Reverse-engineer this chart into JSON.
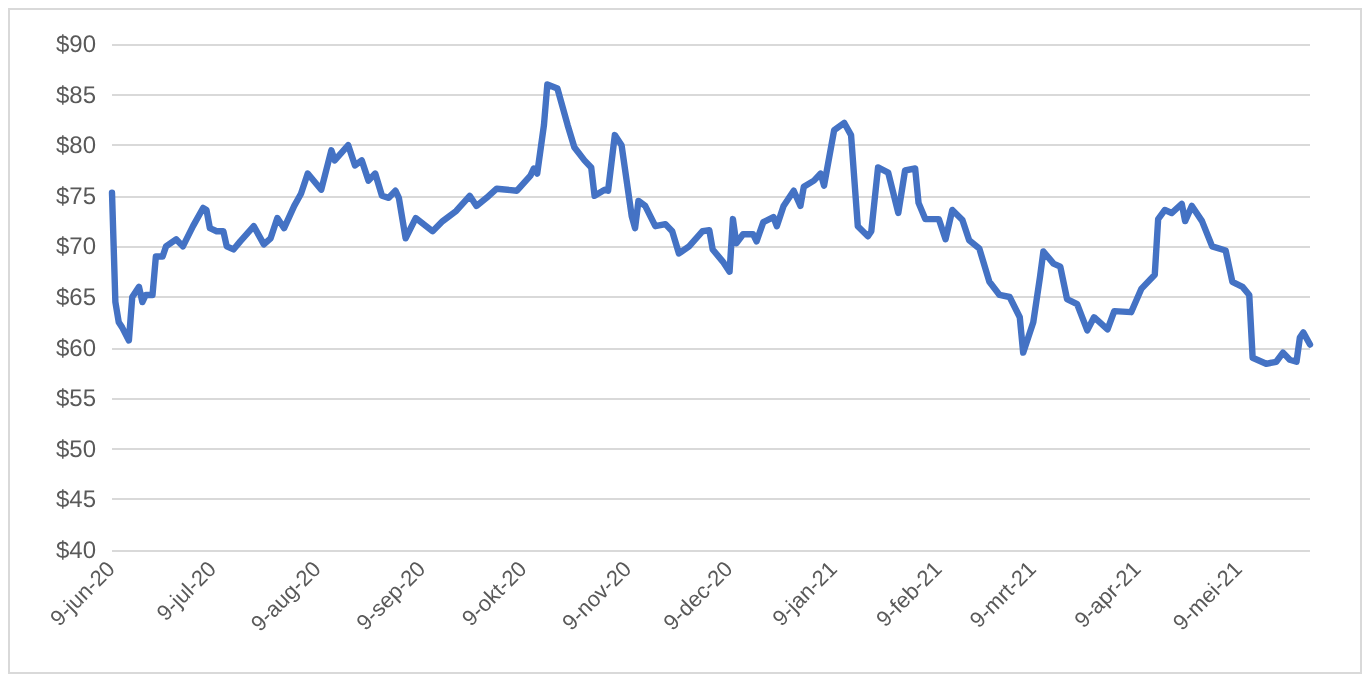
{
  "chart_data": {
    "type": "line",
    "x": [
      "2020-06-09",
      "2020-06-10",
      "2020-06-11",
      "2020-06-12",
      "2020-06-14",
      "2020-06-15",
      "2020-06-17",
      "2020-06-18",
      "2020-06-19",
      "2020-06-21",
      "2020-06-22",
      "2020-06-24",
      "2020-06-25",
      "2020-06-28",
      "2020-06-30",
      "2020-07-03",
      "2020-07-06",
      "2020-07-07",
      "2020-07-08",
      "2020-07-10",
      "2020-07-12",
      "2020-07-13",
      "2020-07-15",
      "2020-07-17",
      "2020-07-21",
      "2020-07-24",
      "2020-07-26",
      "2020-07-28",
      "2020-07-30",
      "2020-08-02",
      "2020-08-04",
      "2020-08-06",
      "2020-08-10",
      "2020-08-13",
      "2020-08-14",
      "2020-08-18",
      "2020-08-20",
      "2020-08-22",
      "2020-08-24",
      "2020-08-26",
      "2020-08-28",
      "2020-08-30",
      "2020-09-01",
      "2020-09-02",
      "2020-09-04",
      "2020-09-07",
      "2020-09-12",
      "2020-09-15",
      "2020-09-19",
      "2020-09-23",
      "2020-09-25",
      "2020-09-28",
      "2020-10-01",
      "2020-10-07",
      "2020-10-11",
      "2020-10-12",
      "2020-10-13",
      "2020-10-15",
      "2020-10-16",
      "2020-10-19",
      "2020-10-22",
      "2020-10-24",
      "2020-10-27",
      "2020-10-29",
      "2020-10-30",
      "2020-11-02",
      "2020-11-03",
      "2020-11-05",
      "2020-11-07",
      "2020-11-10",
      "2020-11-11",
      "2020-11-12",
      "2020-11-14",
      "2020-11-17",
      "2020-11-20",
      "2020-11-22",
      "2020-11-24",
      "2020-11-27",
      "2020-12-01",
      "2020-12-03",
      "2020-12-04",
      "2020-12-07",
      "2020-12-09",
      "2020-12-10",
      "2020-12-11",
      "2020-12-13",
      "2020-12-16",
      "2020-12-17",
      "2020-12-19",
      "2020-12-22",
      "2020-12-23",
      "2020-12-25",
      "2020-12-28",
      "2020-12-30",
      "2020-12-31",
      "2021-01-03",
      "2021-01-05",
      "2021-01-06",
      "2021-01-09",
      "2021-01-12",
      "2021-01-14",
      "2021-01-16",
      "2021-01-19",
      "2021-01-20",
      "2021-01-22",
      "2021-01-25",
      "2021-01-28",
      "2021-01-30",
      "2021-02-02",
      "2021-02-03",
      "2021-02-05",
      "2021-02-09",
      "2021-02-11",
      "2021-02-13",
      "2021-02-16",
      "2021-02-18",
      "2021-02-21",
      "2021-02-24",
      "2021-02-27",
      "2021-03-02",
      "2021-03-05",
      "2021-03-06",
      "2021-03-09",
      "2021-03-11",
      "2021-03-12",
      "2021-03-15",
      "2021-03-17",
      "2021-03-19",
      "2021-03-22",
      "2021-03-25",
      "2021-03-27",
      "2021-03-31",
      "2021-04-02",
      "2021-04-07",
      "2021-04-10",
      "2021-04-14",
      "2021-04-15",
      "2021-04-17",
      "2021-04-19",
      "2021-04-22",
      "2021-04-23",
      "2021-04-25",
      "2021-04-28",
      "2021-05-01",
      "2021-05-05",
      "2021-05-07",
      "2021-05-10",
      "2021-05-12",
      "2021-05-13",
      "2021-05-17",
      "2021-05-20",
      "2021-05-22",
      "2021-05-24",
      "2021-05-26",
      "2021-05-27",
      "2021-05-28",
      "2021-05-30"
    ],
    "series": [
      {
        "color": "#4472c4",
        "values": [
          75.3,
          64.5,
          62.5,
          62,
          60.7,
          65,
          66,
          64.5,
          65.2,
          65.2,
          69,
          69,
          70,
          70.7,
          70,
          72,
          73.8,
          73.6,
          71.8,
          71.5,
          71.5,
          70,
          69.7,
          70.5,
          72,
          70.2,
          70.8,
          72.8,
          71.8,
          74,
          75.2,
          77.2,
          75.6,
          79.5,
          78.5,
          80,
          78,
          78.5,
          76.5,
          77.2,
          75,
          74.8,
          75.5,
          74.8,
          70.8,
          72.8,
          71.5,
          72.5,
          73.5,
          75,
          74,
          74.8,
          75.7,
          75.5,
          77,
          77.7,
          77.2,
          82,
          86,
          85.6,
          82,
          79.8,
          78.5,
          77.8,
          75,
          75.6,
          75.5,
          81,
          80,
          73,
          71.8,
          74.5,
          74,
          72,
          72.2,
          71.5,
          69.3,
          70,
          71.5,
          71.6,
          69.7,
          68.5,
          67.5,
          72.7,
          70.3,
          71.2,
          71.2,
          70.5,
          72.4,
          72.9,
          72,
          74,
          75.5,
          74,
          75.9,
          76.5,
          77.2,
          76,
          81.5,
          82.2,
          81,
          72,
          71,
          71.5,
          77.8,
          77.3,
          73.3,
          77.5,
          77.7,
          74.3,
          72.7,
          72.7,
          70.7,
          73.6,
          72.6,
          70.6,
          69.8,
          66.5,
          65.2,
          65,
          63,
          59.5,
          62.5,
          67,
          69.5,
          68.3,
          68,
          64.8,
          64.3,
          61.7,
          63,
          61.8,
          63.6,
          63.5,
          65.8,
          67.2,
          72.7,
          73.6,
          73.3,
          74.2,
          72.5,
          74,
          72.5,
          70,
          69.6,
          66.5,
          66,
          65.2,
          59,
          58.4,
          58.6,
          59.5,
          58.8,
          58.6,
          61,
          61.5,
          60.3
        ]
      }
    ],
    "xlim": [
      "2020-06-09",
      "2021-05-30"
    ],
    "xticks": [
      {
        "value": "2020-06-09",
        "label": "9-jun-20"
      },
      {
        "value": "2020-07-09",
        "label": "9-jul-20"
      },
      {
        "value": "2020-08-09",
        "label": "9-aug-20"
      },
      {
        "value": "2020-09-09",
        "label": "9-sep-20"
      },
      {
        "value": "2020-10-09",
        "label": "9-okt-20"
      },
      {
        "value": "2020-11-09",
        "label": "9-nov-20"
      },
      {
        "value": "2020-12-09",
        "label": "9-dec-20"
      },
      {
        "value": "2021-01-09",
        "label": "9-jan-21"
      },
      {
        "value": "2021-02-09",
        "label": "9-feb-21"
      },
      {
        "value": "2021-03-09",
        "label": "9-mrt-21"
      },
      {
        "value": "2021-04-09",
        "label": "9-apr-21"
      },
      {
        "value": "2021-05-09",
        "label": "9-mei-21"
      }
    ],
    "ylim": [
      40,
      90
    ],
    "yticks": [
      {
        "value": 40,
        "label": "$40"
      },
      {
        "value": 45,
        "label": "$45"
      },
      {
        "value": 50,
        "label": "$50"
      },
      {
        "value": 55,
        "label": "$55"
      },
      {
        "value": 60,
        "label": "$60"
      },
      {
        "value": 65,
        "label": "$65"
      },
      {
        "value": 70,
        "label": "$70"
      },
      {
        "value": 75,
        "label": "$75"
      },
      {
        "value": 80,
        "label": "$80"
      },
      {
        "value": 85,
        "label": "$85"
      },
      {
        "value": 90,
        "label": "$90"
      }
    ],
    "grid": "y",
    "marker": "none",
    "line_style": "solid"
  }
}
